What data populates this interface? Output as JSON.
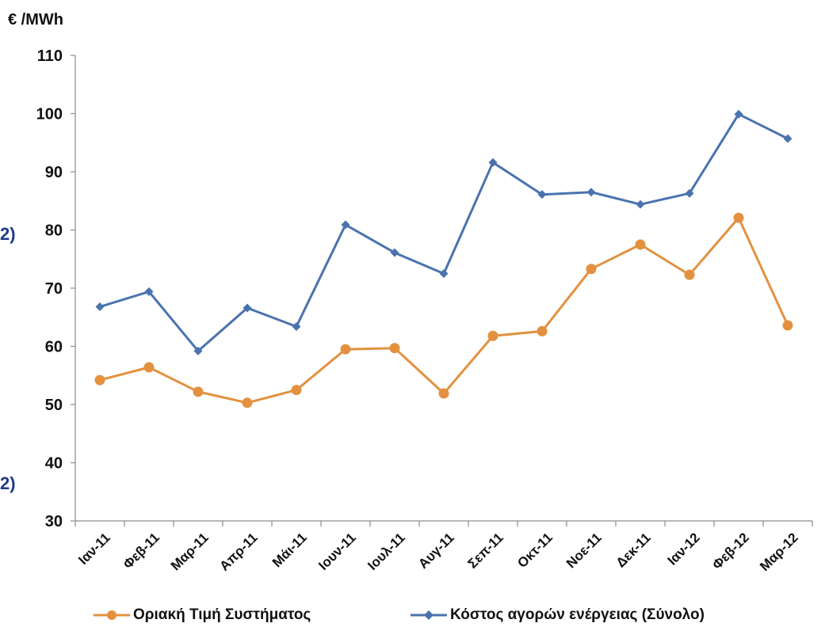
{
  "unit_label": "€ /MWh",
  "edge_fragments": [
    "2)",
    "2)"
  ],
  "colors": {
    "orange": "#E3913F",
    "blue": "#4A73AE",
    "axis": "#8c8c8c"
  },
  "chart_data": {
    "type": "line",
    "ylabel": "€ /MWh",
    "ylim": [
      30,
      110
    ],
    "yticks": [
      30,
      40,
      50,
      60,
      70,
      80,
      90,
      100,
      110
    ],
    "grid": false,
    "legend_position": "bottom",
    "categories": [
      "Ιαν-11",
      "Φεβ-11",
      "Μαρ-11",
      "Απρ-11",
      "Μάι-11",
      "Ιουν-11",
      "Ιουλ-11",
      "Αυγ-11",
      "Σεπ-11",
      "Οκτ-11",
      "Νοε-11",
      "Δεκ-11",
      "Ιαν-12",
      "Φεβ-12",
      "Μαρ-12"
    ],
    "series": [
      {
        "name": "Οριακή Τιμή Συστήματος",
        "color": "#E3913F",
        "marker": "circle",
        "values": [
          54.2,
          56.4,
          52.2,
          50.3,
          52.5,
          59.5,
          59.7,
          51.9,
          61.8,
          62.6,
          73.3,
          77.5,
          72.3,
          82.1,
          63.6
        ]
      },
      {
        "name": "Κόστος αγορών ενέργειας (Σύνολο)",
        "color": "#4A73AE",
        "marker": "diamond",
        "values": [
          66.8,
          69.4,
          59.2,
          66.6,
          63.4,
          80.9,
          76.1,
          72.5,
          91.6,
          86.1,
          86.5,
          84.4,
          86.3,
          99.9,
          95.7
        ]
      }
    ]
  }
}
